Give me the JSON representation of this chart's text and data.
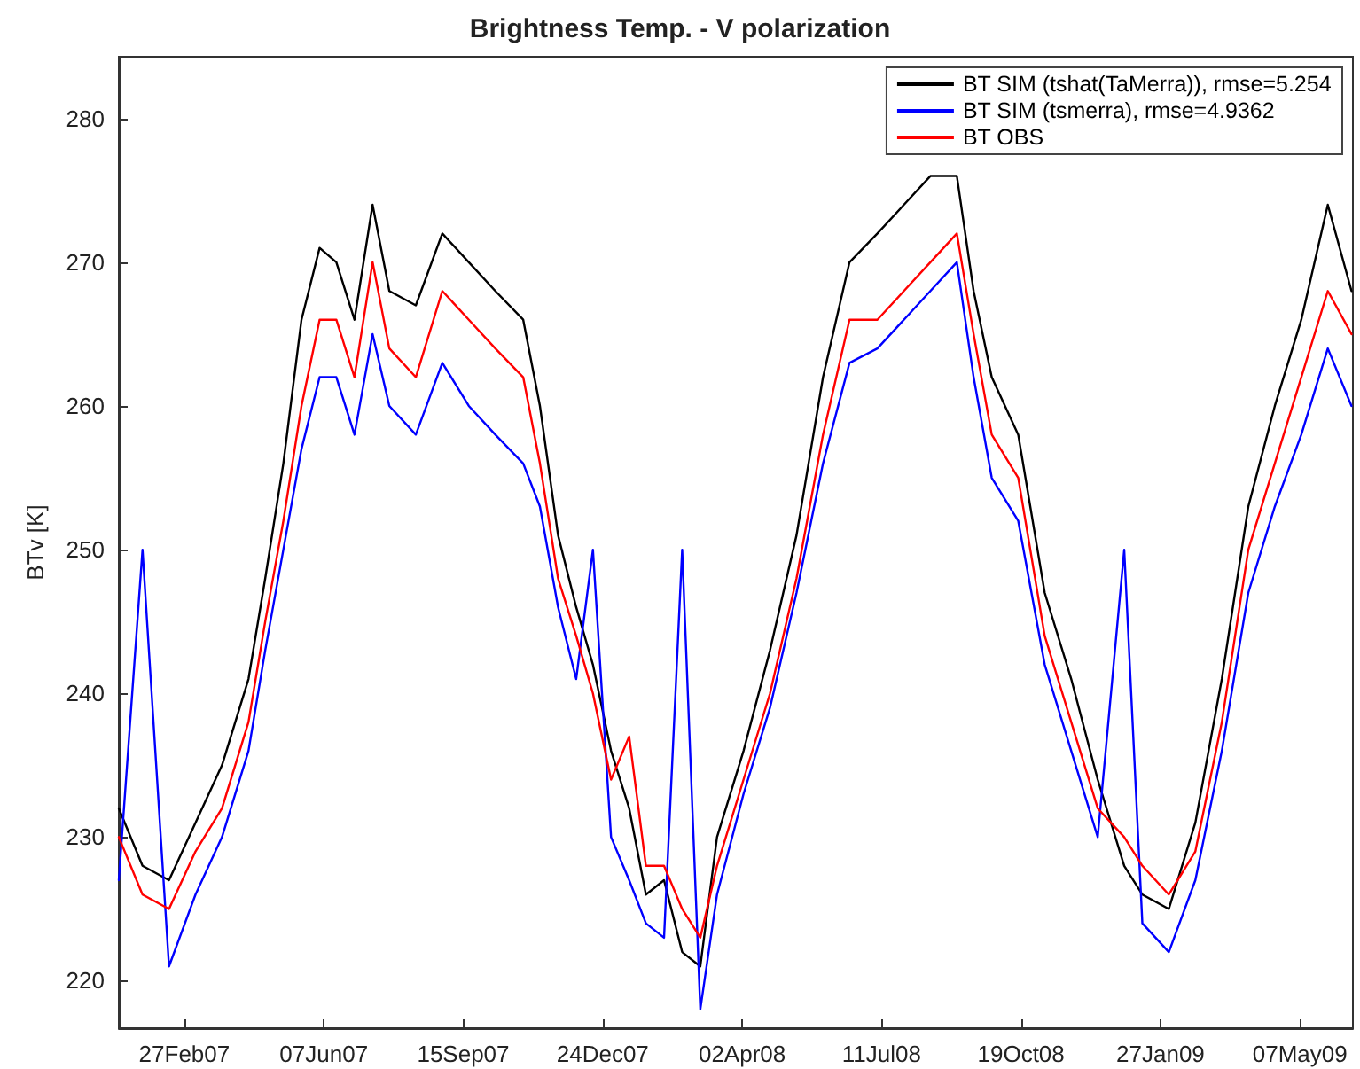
{
  "chart_data": {
    "type": "line",
    "title": "Brightness Temp. - V polarization",
    "ylabel": "BTv [K]",
    "x": [
      "2007-01-11",
      "2007-01-28",
      "2007-02-16",
      "2007-03-07",
      "2007-03-26",
      "2007-04-14",
      "2007-04-26",
      "2007-05-09",
      "2007-05-22",
      "2007-06-04",
      "2007-06-16",
      "2007-06-29",
      "2007-07-12",
      "2007-07-24",
      "2007-08-12",
      "2007-08-31",
      "2007-09-19",
      "2007-10-08",
      "2007-10-28",
      "2007-11-09",
      "2007-11-22",
      "2007-12-05",
      "2007-12-17",
      "2007-12-30",
      "2008-01-12",
      "2008-01-24",
      "2008-02-06",
      "2008-02-19",
      "2008-03-03",
      "2008-03-15",
      "2008-04-03",
      "2008-04-22",
      "2008-05-11",
      "2008-05-30",
      "2008-06-18",
      "2008-07-08",
      "2008-07-27",
      "2008-08-15",
      "2008-09-03",
      "2008-09-15",
      "2008-09-28",
      "2008-10-17",
      "2008-11-05",
      "2008-11-24",
      "2008-12-13",
      "2009-01-01",
      "2009-01-14",
      "2009-02-02",
      "2009-02-21",
      "2009-03-12",
      "2009-03-31",
      "2009-04-19",
      "2009-05-08",
      "2009-05-27",
      "2009-06-13"
    ],
    "series": [
      {
        "name": "BT SIM (tshat(TaMerra)), rmse=5.254",
        "color": "#000000",
        "values": [
          232,
          228,
          227,
          231,
          235,
          241,
          248,
          256,
          266,
          271,
          270,
          266,
          274,
          268,
          267,
          272,
          270,
          268,
          266,
          260,
          251,
          246,
          242,
          236,
          232,
          226,
          227,
          222,
          221,
          230,
          236,
          243,
          251,
          262,
          270,
          272,
          274,
          276,
          276,
          268,
          262,
          258,
          247,
          241,
          234,
          228,
          226,
          225,
          231,
          241,
          253,
          260,
          266,
          274,
          268
        ]
      },
      {
        "name": "BT SIM (tsmerra), rmse=4.9362",
        "color": "#0000ff",
        "values": [
          227,
          250,
          221,
          226,
          230,
          236,
          243,
          250,
          257,
          262,
          262,
          258,
          265,
          260,
          258,
          263,
          260,
          258,
          256,
          253,
          246,
          241,
          250,
          230,
          227,
          224,
          223,
          250,
          218,
          226,
          233,
          239,
          247,
          256,
          263,
          264,
          266,
          268,
          270,
          262,
          255,
          252,
          242,
          236,
          230,
          250,
          224,
          222,
          227,
          236,
          247,
          253,
          258,
          264,
          260
        ]
      },
      {
        "name": "BT OBS",
        "color": "#ff0000",
        "values": [
          230,
          226,
          225,
          229,
          232,
          238,
          245,
          252,
          260,
          266,
          266,
          262,
          270,
          264,
          262,
          268,
          266,
          264,
          262,
          256,
          248,
          244,
          240,
          234,
          237,
          228,
          228,
          225,
          223,
          228,
          234,
          240,
          248,
          258,
          266,
          266,
          268,
          270,
          272,
          265,
          258,
          255,
          244,
          238,
          232,
          230,
          228,
          226,
          229,
          238,
          250,
          256,
          262,
          268,
          265
        ]
      }
    ],
    "xlim": [
      "2007-01-11",
      "2009-06-14"
    ],
    "xticks": [
      {
        "value": "2007-02-27",
        "label": "27Feb07"
      },
      {
        "value": "2007-06-07",
        "label": "07Jun07"
      },
      {
        "value": "2007-09-15",
        "label": "15Sep07"
      },
      {
        "value": "2007-12-24",
        "label": "24Dec07"
      },
      {
        "value": "2008-04-02",
        "label": "02Apr08"
      },
      {
        "value": "2008-07-11",
        "label": "11Jul08"
      },
      {
        "value": "2008-10-19",
        "label": "19Oct08"
      },
      {
        "value": "2009-01-27",
        "label": "27Jan09"
      },
      {
        "value": "2009-05-07",
        "label": "07May09"
      }
    ],
    "ylim": [
      216.7,
      284.3
    ],
    "yticks": [
      220,
      230,
      240,
      250,
      260,
      270,
      280
    ],
    "legend": "top right",
    "marker": "none",
    "line_style": "solid",
    "grid": false
  }
}
